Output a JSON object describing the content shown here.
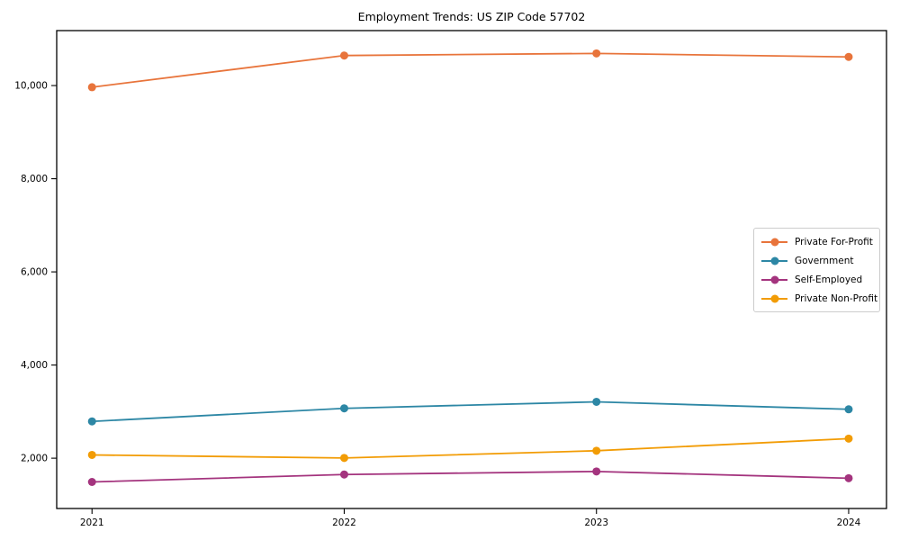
{
  "chart_data": {
    "type": "line",
    "title": "Employment Trends: US ZIP Code 57702",
    "x": [
      2021,
      2022,
      2023,
      2024
    ],
    "x_tick_labels": [
      "2021",
      "2022",
      "2023",
      "2024"
    ],
    "y_ticks": [
      2000,
      4000,
      6000,
      8000,
      10000
    ],
    "y_tick_labels": [
      "2,000",
      "4,000",
      "6,000",
      "8,000",
      "10,000"
    ],
    "xlim": [
      2020.86,
      2024.15
    ],
    "ylim": [
      920,
      11180
    ],
    "grid": false,
    "legend_position": "center-right",
    "background": "#ffffff",
    "axis_color": "#000000",
    "series": [
      {
        "name": "Private For-Profit",
        "color": "#e8743b",
        "values": [
          9965,
          10645,
          10690,
          10615
        ]
      },
      {
        "name": "Government",
        "color": "#2d87a5",
        "values": [
          2790,
          3070,
          3210,
          3050
        ]
      },
      {
        "name": "Self-Employed",
        "color": "#a4347e",
        "values": [
          1490,
          1650,
          1715,
          1570
        ]
      },
      {
        "name": "Private Non-Profit",
        "color": "#f29c05",
        "values": [
          2070,
          2005,
          2160,
          2420
        ]
      }
    ]
  }
}
